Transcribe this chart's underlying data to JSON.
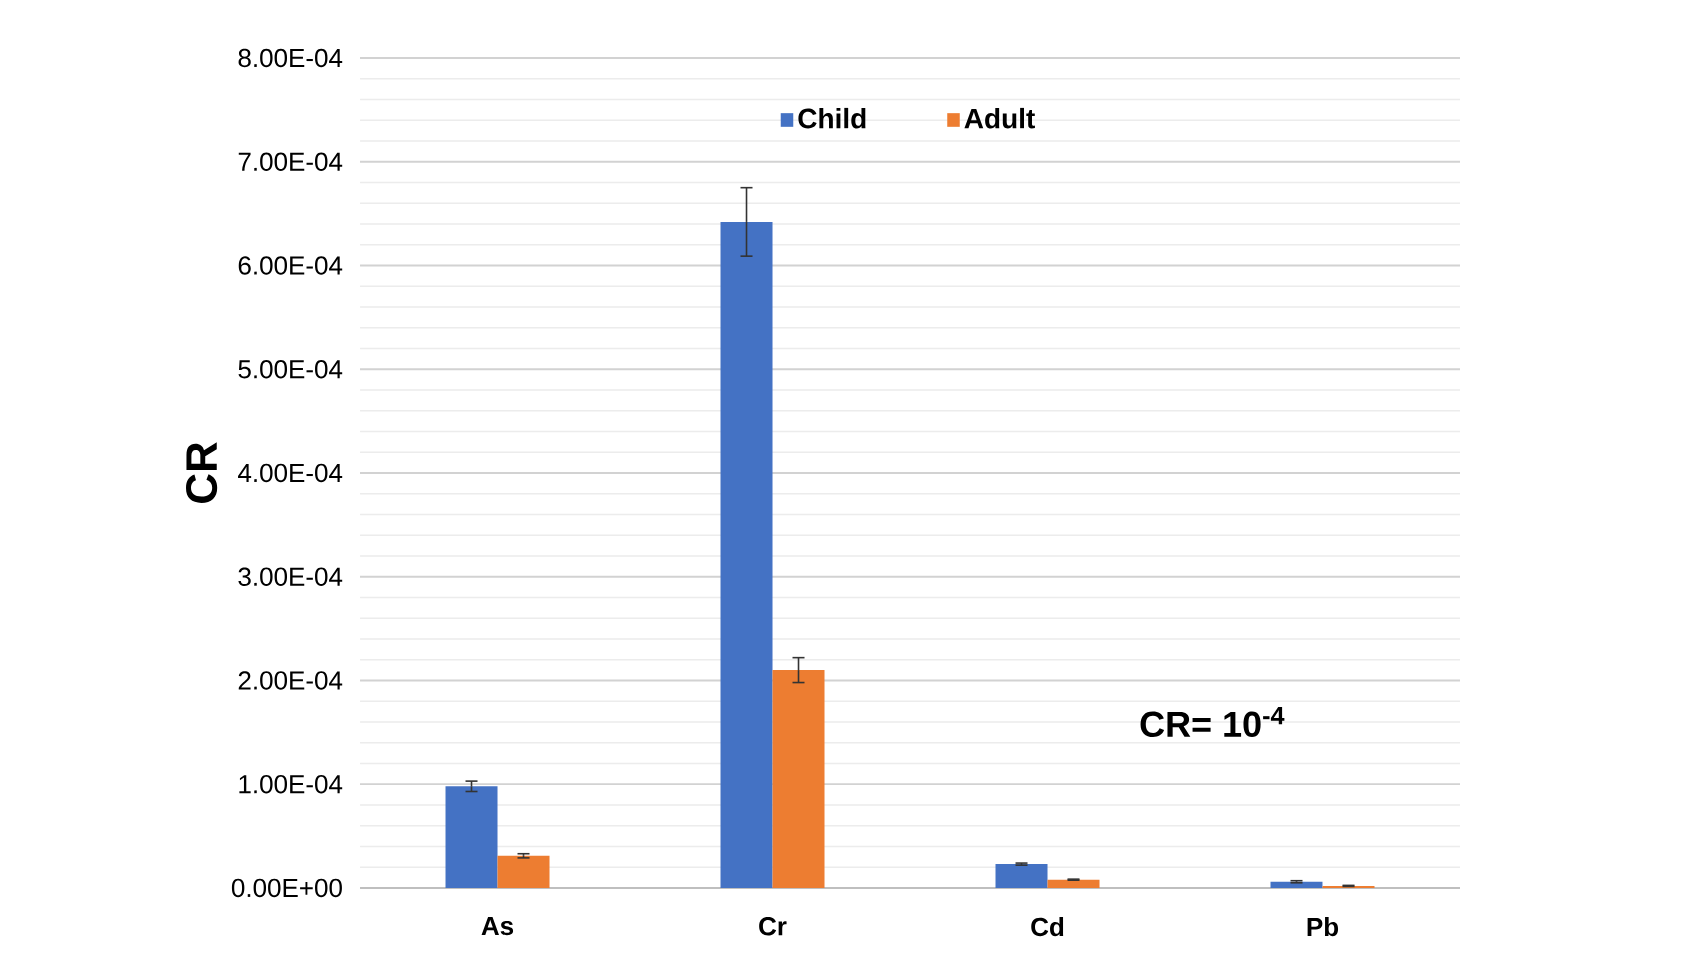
{
  "chart_data": {
    "type": "bar",
    "ylabel": "CR",
    "categories": [
      "As",
      "Cr",
      "Cd",
      "Pb"
    ],
    "series": [
      {
        "name": "Child",
        "color": "#4472c4",
        "values": [
          9.8e-05,
          0.000642,
          2.3e-05,
          6e-06
        ],
        "errors": [
          5e-06,
          3.3e-05,
          1e-06,
          1e-06
        ]
      },
      {
        "name": "Adult",
        "color": "#ed7d31",
        "values": [
          3.1e-05,
          0.00021,
          8e-06,
          2e-06
        ],
        "errors": [
          2e-06,
          1.2e-05,
          5e-07,
          5e-07
        ]
      }
    ],
    "ylim": [
      0,
      0.0008
    ],
    "yticks": [
      {
        "value": 0,
        "label": "0.00E+00"
      },
      {
        "value": 0.0001,
        "label": "1.00E-04"
      },
      {
        "value": 0.0002,
        "label": "2.00E-04"
      },
      {
        "value": 0.0003,
        "label": "3.00E-04"
      },
      {
        "value": 0.0004,
        "label": "4.00E-04"
      },
      {
        "value": 0.0005,
        "label": "5.00E-04"
      },
      {
        "value": 0.0006,
        "label": "6.00E-04"
      },
      {
        "value": 0.0007,
        "label": "7.00E-04"
      },
      {
        "value": 0.0008,
        "label": "8.00E-04"
      }
    ],
    "annotations": [
      "CR= 10$^{-4}$"
    ],
    "grid": "y",
    "legend": "top"
  }
}
